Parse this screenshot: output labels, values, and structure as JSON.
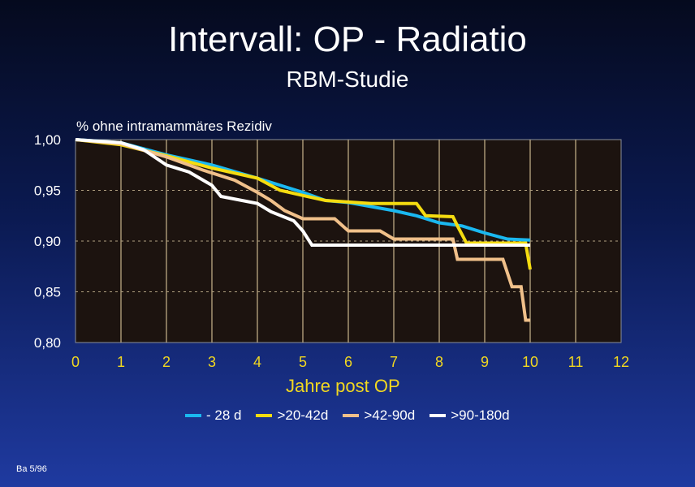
{
  "slide": {
    "title": "Intervall: OP - Radiatio",
    "subtitle": "RBM-Studie",
    "footer": "Ba 5/96"
  },
  "chart_data": {
    "type": "line",
    "title": "Intervall: OP - Radiatio",
    "ylabel": "% ohne intramammäres Rezidiv",
    "xlabel": "Jahre post OP",
    "xlim": [
      0,
      12
    ],
    "ylim": [
      0.8,
      1.0
    ],
    "xticks": [
      "0",
      "1",
      "2",
      "3",
      "4",
      "5",
      "6",
      "7",
      "8",
      "9",
      "10",
      "11",
      "12"
    ],
    "yticks": [
      "1,00",
      "0,95",
      "0,90",
      "0,85",
      "0,80"
    ],
    "ytick_values": [
      1.0,
      0.95,
      0.9,
      0.85,
      0.8
    ],
    "legend_position": "bottom",
    "series": [
      {
        "name": "- 28 d",
        "color": "#1ab8f0",
        "points": [
          [
            0,
            1
          ],
          [
            1,
            0.997
          ],
          [
            2,
            0.985
          ],
          [
            3,
            0.975
          ],
          [
            4,
            0.962
          ],
          [
            5,
            0.948
          ],
          [
            5.5,
            0.94
          ],
          [
            6,
            0.938
          ],
          [
            7,
            0.93
          ],
          [
            7.5,
            0.925
          ],
          [
            8,
            0.918
          ],
          [
            8.5,
            0.915
          ],
          [
            9,
            0.908
          ],
          [
            9.5,
            0.902
          ],
          [
            10,
            0.901
          ]
        ]
      },
      {
        "name": ">20-42d",
        "color": "#f5dc10",
        "points": [
          [
            0,
            1
          ],
          [
            1,
            0.995
          ],
          [
            2,
            0.984
          ],
          [
            3,
            0.972
          ],
          [
            4,
            0.962
          ],
          [
            4.5,
            0.95
          ],
          [
            5,
            0.945
          ],
          [
            5.5,
            0.94
          ],
          [
            6.5,
            0.937
          ],
          [
            7.5,
            0.937
          ],
          [
            7.7,
            0.925
          ],
          [
            8.3,
            0.924
          ],
          [
            8.4,
            0.915
          ],
          [
            8.6,
            0.898
          ],
          [
            9.9,
            0.898
          ],
          [
            10,
            0.872
          ]
        ]
      },
      {
        "name": ">42-90d",
        "color": "#f0c08a",
        "points": [
          [
            0,
            1
          ],
          [
            1,
            0.996
          ],
          [
            2,
            0.983
          ],
          [
            2.8,
            0.97
          ],
          [
            3.5,
            0.96
          ],
          [
            4,
            0.948
          ],
          [
            4.3,
            0.94
          ],
          [
            4.6,
            0.93
          ],
          [
            5,
            0.922
          ],
          [
            5.7,
            0.922
          ],
          [
            6,
            0.91
          ],
          [
            6.7,
            0.91
          ],
          [
            7,
            0.902
          ],
          [
            8.3,
            0.902
          ],
          [
            8.4,
            0.882
          ],
          [
            9.4,
            0.882
          ],
          [
            9.6,
            0.855
          ],
          [
            9.8,
            0.855
          ],
          [
            9.9,
            0.822
          ],
          [
            10,
            0.822
          ]
        ]
      },
      {
        "name": ">90-180d",
        "color": "#ffffff",
        "points": [
          [
            0,
            1
          ],
          [
            1,
            0.997
          ],
          [
            1.5,
            0.99
          ],
          [
            2,
            0.975
          ],
          [
            2.5,
            0.968
          ],
          [
            3,
            0.955
          ],
          [
            3.2,
            0.944
          ],
          [
            4,
            0.937
          ],
          [
            4.3,
            0.929
          ],
          [
            4.8,
            0.92
          ],
          [
            5,
            0.91
          ],
          [
            5.2,
            0.896
          ],
          [
            10,
            0.896
          ]
        ]
      }
    ]
  }
}
